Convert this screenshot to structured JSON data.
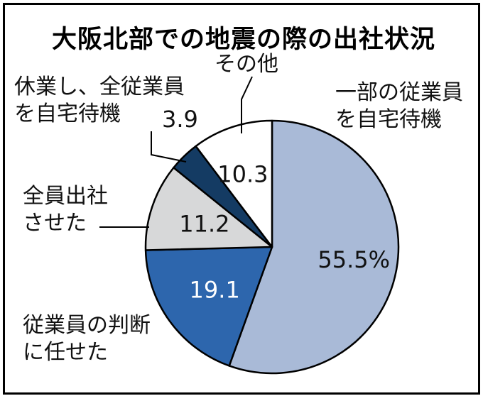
{
  "title": "大阪北部での地震の際の出社状況",
  "colors": {
    "ichibu": "#a9bad7",
    "makaseta": "#2d66ad",
    "zenin": "#d7d8d9",
    "kyugyo": "#143b63",
    "sonota": "#ffffff",
    "outline": "#000000"
  },
  "chart_data": {
    "type": "pie",
    "title": "大阪北部での地震の際の出社状況",
    "unit": "%",
    "start": "12 o'clock, clockwise",
    "slices": [
      {
        "id": "ichibu",
        "label_lines": [
          "一部の従業員",
          "を自宅待機"
        ],
        "value": 55.5,
        "display": "55.5%",
        "color": "#a9bad7",
        "value_color": "#111111"
      },
      {
        "id": "makaseta",
        "label_lines": [
          "従業員の判断",
          "に任せた"
        ],
        "value": 19.1,
        "display": "19.1",
        "color": "#2d66ad",
        "value_color": "#ffffff"
      },
      {
        "id": "zenin",
        "label_lines": [
          "全員出社",
          "させた"
        ],
        "value": 11.2,
        "display": "11.2",
        "color": "#d7d8d9",
        "value_color": "#111111"
      },
      {
        "id": "kyugyo",
        "label_lines": [
          "休業し、全従業員",
          "を自宅待機"
        ],
        "value": 3.9,
        "display": "3.9",
        "color": "#143b63",
        "value_color": "#111111"
      },
      {
        "id": "sonota",
        "label_lines": [
          "その他"
        ],
        "value": 10.3,
        "display": "10.3",
        "color": "#ffffff",
        "value_color": "#111111"
      }
    ]
  }
}
